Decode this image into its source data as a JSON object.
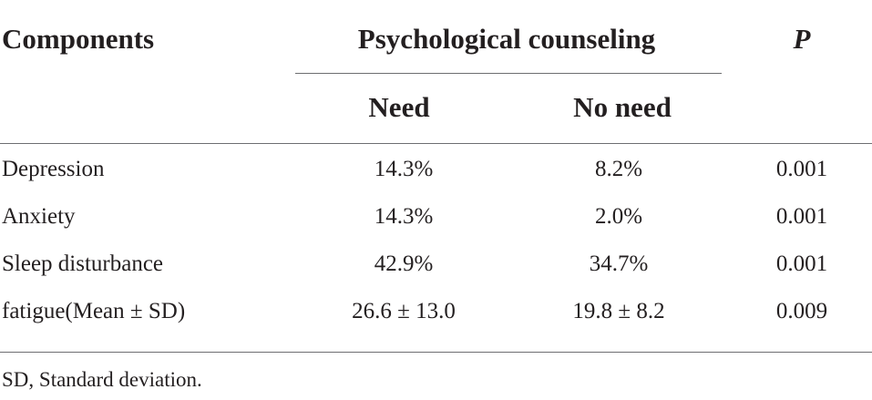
{
  "table": {
    "headers": {
      "components": "Components",
      "group": "Psychological counseling",
      "need": "Need",
      "no_need": "No need",
      "p": "P"
    },
    "rows": [
      {
        "component": "Depression",
        "need": "14.3%",
        "no_need": "8.2%",
        "p": "0.001"
      },
      {
        "component": "Anxiety",
        "need": "14.3%",
        "no_need": "2.0%",
        "p": "0.001"
      },
      {
        "component": "Sleep disturbance",
        "need": "42.9%",
        "no_need": "34.7%",
        "p": "0.001"
      },
      {
        "component": "fatigue(Mean ± SD)",
        "need": "26.6 ± 13.0",
        "no_need": "19.8 ± 8.2",
        "p": "0.009"
      }
    ],
    "footnote": "SD, Standard deviation."
  }
}
